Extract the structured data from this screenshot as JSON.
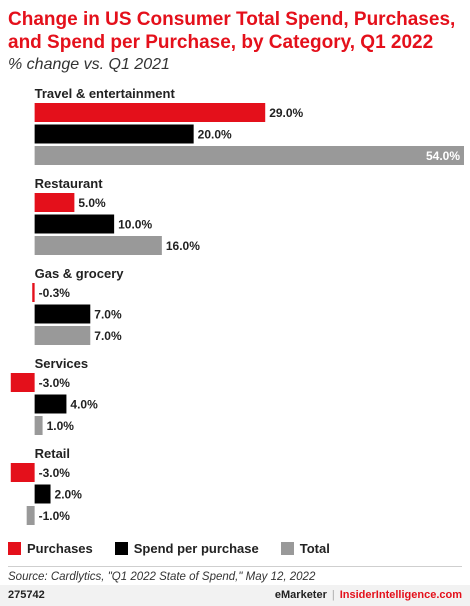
{
  "chart_data": {
    "type": "bar",
    "orientation": "horizontal",
    "title": "Change in US Consumer Total Spend, Purchases, and Spend per Purchase, by Category, Q1 2022",
    "subtitle": "% change vs. Q1 2021",
    "categories": [
      "Travel & entertainment",
      "Restaurant",
      "Gas & grocery",
      "Services",
      "Retail"
    ],
    "series": [
      {
        "name": "Purchases",
        "color": "#e4101b",
        "values": [
          29.0,
          5.0,
          -0.3,
          -3.0,
          -3.0
        ]
      },
      {
        "name": "Spend per purchase",
        "color": "#000000",
        "values": [
          20.0,
          10.0,
          7.0,
          4.0,
          2.0
        ]
      },
      {
        "name": "Total",
        "color": "#999999",
        "values": [
          54.0,
          16.0,
          7.0,
          1.0,
          -1.0
        ]
      }
    ],
    "xlim": [
      -3.6,
      54.0
    ],
    "value_suffix": "%",
    "grid": false,
    "legend_position": "bottom-left"
  },
  "source": "Source: Cardlytics, \"Q1 2022 State of Spend,\" May 12, 2022",
  "footer": {
    "chart_id": "275742",
    "brand_left": "eMarketer",
    "brand_separator": "|",
    "brand_right": "InsiderIntelligence.com"
  }
}
